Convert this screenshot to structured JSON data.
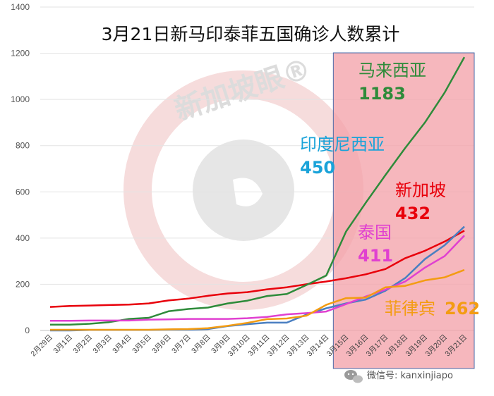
{
  "watermark": {
    "text": "新加坡眼®"
  },
  "footer": {
    "wechat_label": "微信号: kanxinjiapo",
    "wechat_icon": "wechat-icon"
  },
  "highlight": {
    "from": "3月15日",
    "to": "3月21日",
    "color": "#f4a3aa"
  },
  "callouts": [
    {
      "id": "malaysia",
      "name": "马来西亚",
      "value": "1183",
      "color": "#2e8b3a"
    },
    {
      "id": "indonesia",
      "name": "印度尼西亚",
      "value": "450",
      "color": "#1aa3d9"
    },
    {
      "id": "singapore",
      "name": "新加坡",
      "value": "432",
      "color": "#e8000b"
    },
    {
      "id": "thailand",
      "name": "泰国",
      "value": "411",
      "color": "#e040d0"
    },
    {
      "id": "philippines",
      "name": "菲律宾",
      "value": "262",
      "color": "#f39c12"
    }
  ],
  "chart_data": {
    "type": "line",
    "title": "3月21日新马印泰菲五国确诊人数累计",
    "xlabel": "",
    "ylabel": "",
    "ylim": [
      0,
      1400
    ],
    "yticks": [
      0,
      200,
      400,
      600,
      800,
      1000,
      1200,
      1400
    ],
    "grid": true,
    "legend": "none",
    "categories": [
      "2月29日",
      "3月1日",
      "3月2日",
      "3月3日",
      "3月4日",
      "3月5日",
      "3月6日",
      "3月7日",
      "3月8日",
      "3月9日",
      "3月10日",
      "3月11日",
      "3月12日",
      "3月13日",
      "3月14日",
      "3月15日",
      "3月16日",
      "3月17日",
      "3月18日",
      "3月19日",
      "3月20日",
      "3月21日"
    ],
    "series": [
      {
        "id": "singapore",
        "color": "#e8000b",
        "values": [
          102,
          106,
          108,
          110,
          112,
          117,
          130,
          138,
          150,
          160,
          166,
          178,
          187,
          200,
          212,
          226,
          243,
          266,
          313,
          345,
          385,
          432
        ]
      },
      {
        "id": "malaysia",
        "color": "#2e8b3a",
        "values": [
          25,
          25,
          29,
          36,
          50,
          55,
          83,
          93,
          99,
          117,
          129,
          149,
          158,
          197,
          238,
          428,
          553,
          673,
          790,
          900,
          1030,
          1183
        ]
      },
      {
        "id": "indonesia",
        "color": "#4a7fc1",
        "values": [
          0,
          0,
          2,
          2,
          2,
          2,
          4,
          4,
          6,
          19,
          27,
          34,
          34,
          69,
          96,
          117,
          134,
          172,
          227,
          309,
          369,
          450
        ]
      },
      {
        "id": "thailand",
        "color": "#e040d0",
        "values": [
          42,
          42,
          43,
          43,
          43,
          47,
          48,
          50,
          50,
          50,
          53,
          59,
          70,
          75,
          82,
          114,
          147,
          177,
          212,
          272,
          322,
          411
        ]
      },
      {
        "id": "philippines",
        "color": "#f39c12",
        "values": [
          3,
          3,
          3,
          3,
          3,
          3,
          5,
          6,
          10,
          20,
          33,
          49,
          52,
          64,
          111,
          140,
          142,
          187,
          193,
          217,
          230,
          262
        ]
      }
    ]
  }
}
